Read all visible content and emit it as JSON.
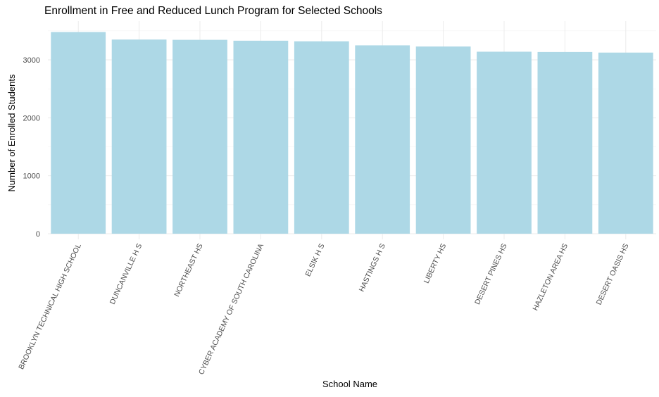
{
  "chart_data": {
    "type": "bar",
    "title": "Enrollment in Free and Reduced Lunch Program for Selected Schools",
    "xlabel": "School Name",
    "ylabel": "Number of Enrolled Students",
    "categories": [
      "BROOKLYN TECHNICAL HIGH SCHOOL",
      "DUNCANVILLE H S",
      "NORTHEAST HS",
      "CYBER ACADEMY OF SOUTH CAROLINA",
      "ELSIK H S",
      "HASTINGS H S",
      "LIBERTY HS",
      "DESERT PINES HS",
      "HAZLETON AREA HS",
      "DESERT OASIS HS"
    ],
    "values": [
      3480,
      3350,
      3345,
      3330,
      3320,
      3250,
      3230,
      3140,
      3135,
      3125
    ],
    "ylim": [
      0,
      3650
    ],
    "yticks": [
      0,
      1000,
      2000,
      3000
    ],
    "grid": true,
    "legend": "none",
    "bar_color": "#add8e6",
    "grid_color": "#ebebeb"
  }
}
